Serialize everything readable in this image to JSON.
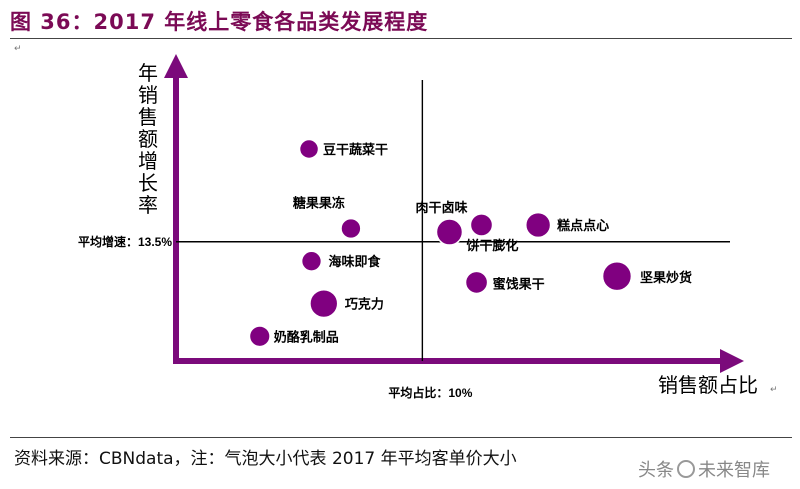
{
  "figure_title": "图 36：2017 年线上零食各品类发展程度",
  "source_note": "资料来源：CBNdata，注：气泡大小代表 2017 年平均客单价大小",
  "watermark": {
    "left": "头条",
    "right": "未来智库"
  },
  "chart_data": {
    "type": "scatter",
    "title": "",
    "xlabel": "销售额占比",
    "ylabel": "年销售额增长率",
    "x_axis_numbers_shown": false,
    "y_axis_numbers_shown": false,
    "reference_lines": {
      "x": {
        "value": 10,
        "label": "平均占比：10%"
      },
      "y": {
        "value": 13.5,
        "label": "平均增速：13.5%"
      }
    },
    "xlim": [
      0,
      22
    ],
    "ylim": [
      0,
      30
    ],
    "bubble_color": "#800080",
    "axis_color": "#7b0a7b",
    "points": [
      {
        "label": "豆干蔬菜干",
        "x": 5.4,
        "y": 24.0,
        "size": 1.0
      },
      {
        "label": "糖果果冻",
        "x": 7.1,
        "y": 15.0,
        "size": 1.1
      },
      {
        "label": "肉干卤味",
        "x": 11.1,
        "y": 14.6,
        "size": 2.0
      },
      {
        "label": "饼干膨化",
        "x": 12.4,
        "y": 15.4,
        "size": 1.4
      },
      {
        "label": "糕点点心",
        "x": 14.7,
        "y": 15.4,
        "size": 1.8
      },
      {
        "label": "海味即食",
        "x": 5.5,
        "y": 11.3,
        "size": 1.1
      },
      {
        "label": "巧克力",
        "x": 6.0,
        "y": 6.5,
        "size": 2.3
      },
      {
        "label": "蜜饯果干",
        "x": 12.2,
        "y": 8.9,
        "size": 1.4
      },
      {
        "label": "坚果炒货",
        "x": 17.9,
        "y": 9.6,
        "size": 2.5
      },
      {
        "label": "奶酪乳制品",
        "x": 3.4,
        "y": 2.8,
        "size": 1.2
      }
    ]
  }
}
